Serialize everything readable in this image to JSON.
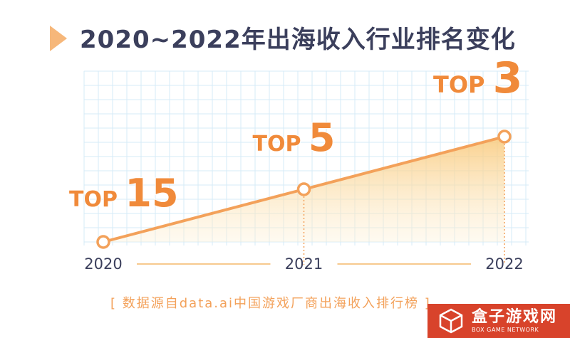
{
  "title": "2020~2022年出海收入行业排名变化",
  "source_note": "[ 数据源自data.ai中国游戏厂商出海收入排行榜 ]",
  "watermark": {
    "name": "盒子游戏网",
    "subtitle": "BOX GAME NETWORK"
  },
  "colors": {
    "line": "#f3a15a",
    "label": "#f08a3a",
    "title": "#3b3f5c",
    "grid": "#d6ebf7",
    "badge": "#d8432b"
  },
  "chart_data": {
    "type": "line",
    "title": "2020~2022年出海收入行业排名变化",
    "x": [
      "2020",
      "2021",
      "2022"
    ],
    "series": [
      {
        "values": [
          15,
          5,
          3
        ],
        "labels": [
          "TOP",
          "TOP",
          "TOP"
        ]
      }
    ],
    "y_scale": "reciprocal",
    "grid": true,
    "area_fill": true,
    "xlabel": "",
    "ylabel": ""
  }
}
